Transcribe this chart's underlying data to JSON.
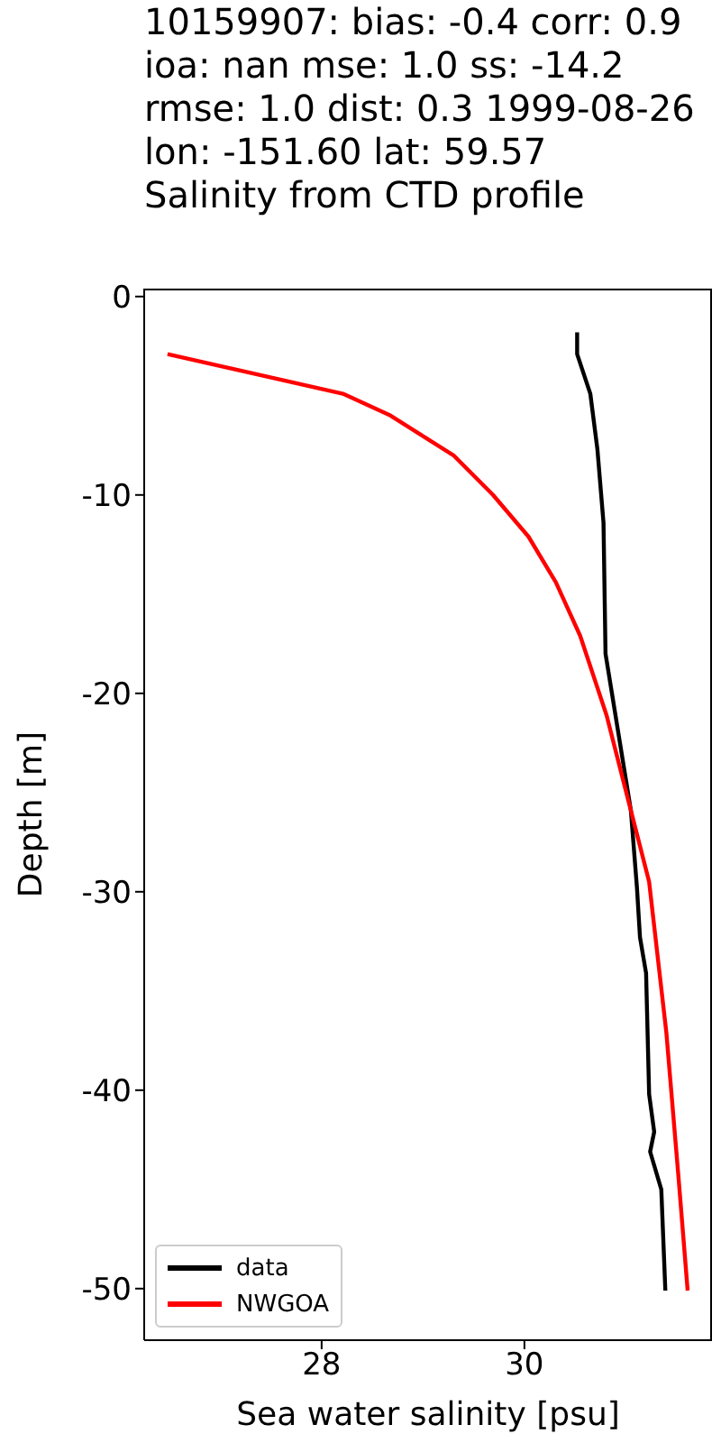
{
  "chart_data": {
    "type": "line",
    "title": "10159907: bias: -0.4  corr: 0.9  ioa: nan  mse: 1.0  ss: -14.2  rmse: 1.0  dist: 0.3 1999-08-26 lon: -151.60 lat: 59.57\nSalinity from CTD profile",
    "xlabel": "Sea water salinity [psu]",
    "ylabel": "Depth [m]",
    "xlim": [
      26.25,
      31.85
    ],
    "xticks": [
      28,
      30
    ],
    "ylim": [
      -52.6,
      0.4
    ],
    "yticks": [
      0,
      -10,
      -20,
      -30,
      -40,
      -50
    ],
    "grid": false,
    "legend": "bottom left",
    "series": [
      {
        "name": "data",
        "color": "#000000",
        "x": [
          30.52,
          30.52,
          30.65,
          30.72,
          30.78,
          30.8,
          31.05,
          31.11,
          31.14,
          31.2,
          31.23,
          31.28,
          31.24,
          31.35,
          31.39
        ],
        "values": [
          -1.8,
          -2.9,
          -4.9,
          -7.7,
          -11.4,
          -18,
          -25.9,
          -29.8,
          -32.3,
          -34.1,
          -40.2,
          -42.1,
          -43.1,
          -45,
          -50.1
        ]
      },
      {
        "name": "NWGOA",
        "color": "#ff0000",
        "x": [
          26.48,
          28.21,
          28.68,
          29.3,
          29.69,
          30.04,
          30.31,
          30.55,
          30.81,
          31.05,
          31.23,
          31.4,
          31.52,
          31.61
        ],
        "values": [
          -2.9,
          -4.9,
          -6,
          -8,
          -10,
          -12.1,
          -14.4,
          -17.1,
          -21.1,
          -25.9,
          -29.5,
          -37.1,
          -44.4,
          -50.1
        ]
      }
    ]
  }
}
